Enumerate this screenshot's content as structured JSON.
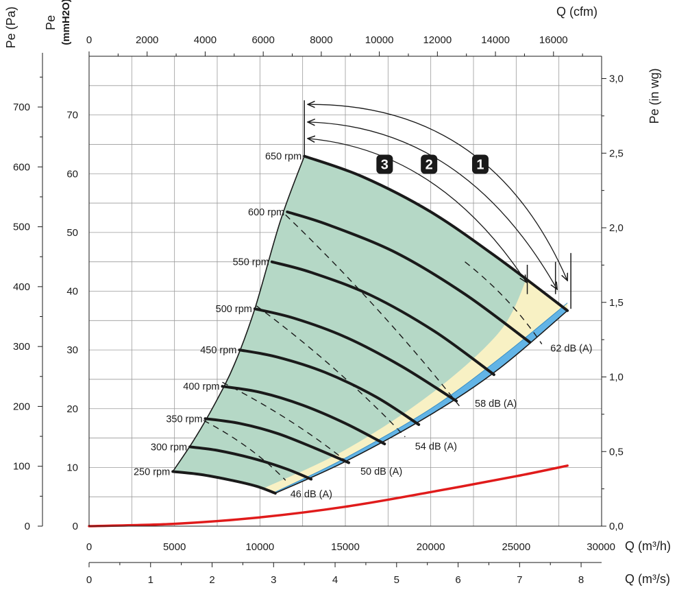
{
  "chart_data": {
    "type": "line",
    "title": "",
    "colors": {
      "region_main": "#b5d8c6",
      "region_yellow": "#f8f1c4",
      "region_blue": "#62b4e6",
      "rpm_curve": "#1a1a1a",
      "red_curve": "#e01b1b",
      "grid": "#9a9a9a"
    },
    "axes": {
      "x_bottom_m3h": {
        "label": "Q (m³/h)",
        "range": [
          0,
          30000
        ],
        "ticks": [
          "0",
          "5000",
          "10000",
          "15000",
          "20000",
          "25000",
          "30000"
        ]
      },
      "x_bottom_m3s": {
        "label": "Q (m³/s)",
        "range": [
          0,
          8.333
        ],
        "ticks": [
          "0",
          "1",
          "2",
          "3",
          "4",
          "5",
          "6",
          "7",
          "8"
        ]
      },
      "x_top_cfm": {
        "label": "Q (cfm)",
        "range": [
          0,
          17657
        ],
        "ticks": [
          "0",
          "2000",
          "4000",
          "6000",
          "8000",
          "10000",
          "12000",
          "14000",
          "16000"
        ]
      },
      "y_left_pa": {
        "label": "Pe (Pa)",
        "range": [
          0,
          784.8
        ],
        "ticks": [
          "0",
          "100",
          "200",
          "300",
          "400",
          "500",
          "600",
          "700"
        ]
      },
      "y_left_mmh2o": {
        "label": "Pe",
        "sublabel": "(mmH2O)",
        "range": [
          0,
          80
        ],
        "ticks": [
          "0",
          "10",
          "20",
          "30",
          "40",
          "50",
          "60",
          "70"
        ]
      },
      "y_right_inwg": {
        "label": "Pe (in wg)",
        "range": [
          0,
          3.15
        ],
        "ticks": [
          "0,0",
          "0,5",
          "1,0",
          "1,5",
          "2,0",
          "2,5",
          "3,0"
        ]
      },
      "grid": true
    },
    "x_unit": "m3/h",
    "y_unit": "mmH2O",
    "rpm_curves": [
      {
        "name": "650 rpm",
        "points": [
          [
            12600,
            63
          ],
          [
            16000,
            59.5
          ],
          [
            20000,
            53.5
          ],
          [
            24000,
            45.5
          ],
          [
            28000,
            36.7
          ]
        ]
      },
      {
        "name": "600 rpm",
        "points": [
          [
            11600,
            53.5
          ],
          [
            14000,
            51.3
          ],
          [
            18000,
            46.5
          ],
          [
            22000,
            39.5
          ],
          [
            25800,
            31.3
          ]
        ]
      },
      {
        "name": "550 rpm",
        "points": [
          [
            10700,
            45
          ],
          [
            13000,
            43.2
          ],
          [
            16500,
            39.3
          ],
          [
            20200,
            33.2
          ],
          [
            23700,
            25.8
          ]
        ]
      },
      {
        "name": "500 rpm",
        "points": [
          [
            9700,
            37
          ],
          [
            12000,
            35.4
          ],
          [
            15000,
            32.2
          ],
          [
            18300,
            27.2
          ],
          [
            21500,
            21.3
          ]
        ]
      },
      {
        "name": "450 rpm",
        "points": [
          [
            8800,
            30
          ],
          [
            11000,
            28.8
          ],
          [
            13800,
            26.2
          ],
          [
            16800,
            22
          ],
          [
            19300,
            17.3
          ]
        ]
      },
      {
        "name": "400 rpm",
        "points": [
          [
            7800,
            23.8
          ],
          [
            10000,
            22.8
          ],
          [
            12500,
            20.6
          ],
          [
            15000,
            17.5
          ],
          [
            17300,
            14
          ]
        ]
      },
      {
        "name": "350 rpm",
        "points": [
          [
            6800,
            18.3
          ],
          [
            8800,
            17.5
          ],
          [
            11000,
            15.8
          ],
          [
            13200,
            13.3
          ],
          [
            15200,
            10.8
          ]
        ]
      },
      {
        "name": "300 rpm",
        "points": [
          [
            5900,
            13.5
          ],
          [
            7500,
            12.9
          ],
          [
            9500,
            11.6
          ],
          [
            11500,
            9.8
          ],
          [
            13000,
            8
          ]
        ]
      },
      {
        "name": "250 rpm",
        "points": [
          [
            4900,
            9.3
          ],
          [
            6500,
            8.8
          ],
          [
            8200,
            7.9
          ],
          [
            9800,
            6.8
          ],
          [
            10900,
            5.6
          ]
        ]
      }
    ],
    "left_envelope": [
      [
        12600,
        63
      ],
      [
        11200,
        52
      ],
      [
        9700,
        37
      ],
      [
        8500,
        27.5
      ],
      [
        7300,
        20.5
      ],
      [
        6100,
        14.5
      ],
      [
        4900,
        9.3
      ]
    ],
    "bottom_envelope": [
      [
        10900,
        5.6
      ],
      [
        15000,
        11
      ],
      [
        20000,
        19
      ],
      [
        24000,
        26.8
      ],
      [
        28000,
        36.7
      ]
    ],
    "boundary_yellow": [
      [
        10100,
        6.3
      ],
      [
        15000,
        13
      ],
      [
        20000,
        22.5
      ],
      [
        24000,
        33
      ],
      [
        25600,
        42
      ]
    ],
    "boundary_blue": [
      [
        10900,
        5.8
      ],
      [
        15000,
        11.6
      ],
      [
        20000,
        20
      ],
      [
        24000,
        28.5
      ],
      [
        28000,
        38
      ]
    ],
    "noise_lines": [
      {
        "name": "46 dB (A)",
        "points": [
          [
            6700,
            18
          ],
          [
            11500,
            7.8
          ]
        ]
      },
      {
        "name": "50 dB (A)",
        "points": [
          [
            7800,
            24.5
          ],
          [
            15200,
            10.7
          ]
        ]
      },
      {
        "name": "54 dB (A)",
        "points": [
          [
            9800,
            37.5
          ],
          [
            18500,
            15.2
          ]
        ]
      },
      {
        "name": "58 dB (A)",
        "points": [
          [
            11500,
            53
          ],
          [
            21800,
            20
          ]
        ]
      },
      {
        "name": "62 dB (A)",
        "points": [
          [
            22000,
            45
          ],
          [
            26500,
            31
          ]
        ]
      }
    ],
    "system_curve": {
      "points": [
        [
          0,
          0
        ],
        [
          5000,
          0.4
        ],
        [
          10000,
          1.5
        ],
        [
          15000,
          3.3
        ],
        [
          20000,
          5.8
        ],
        [
          25000,
          8.5
        ],
        [
          28000,
          10.3
        ]
      ]
    },
    "annotations": {
      "rpm_labels": [
        "650 rpm",
        "600 rpm",
        "550 rpm",
        "500 rpm",
        "450 rpm",
        "400 rpm",
        "350 rpm",
        "300 rpm",
        "250 rpm"
      ],
      "db_labels": [
        "46 dB (A)",
        "50 dB (A)",
        "54 dB (A)",
        "58 dB (A)",
        "62 dB (A)"
      ],
      "badges": [
        "1",
        "2",
        "3"
      ]
    }
  }
}
